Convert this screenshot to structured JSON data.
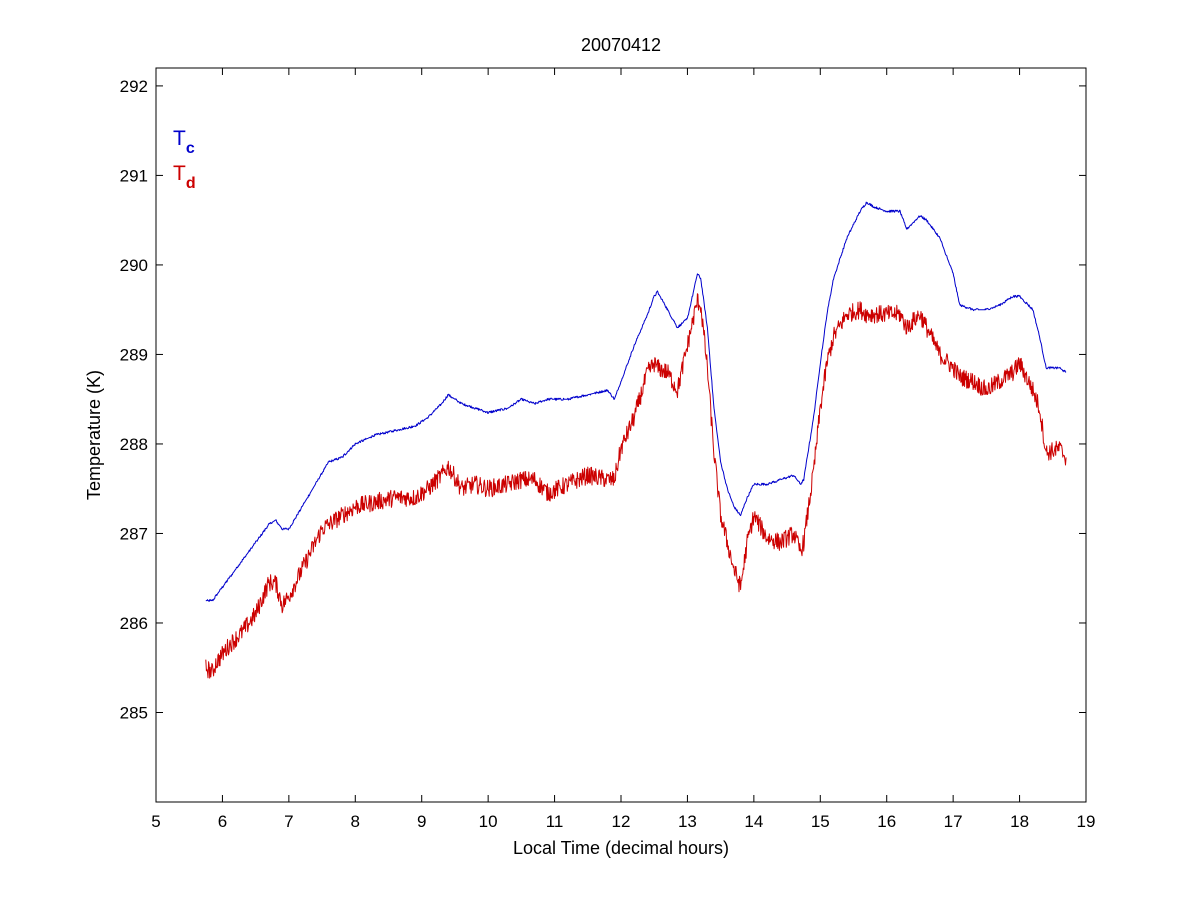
{
  "chart_data": {
    "type": "line",
    "title": "20070412",
    "xlabel": "Local Time (decimal hours)",
    "ylabel": "Temperature (K)",
    "xlim": [
      5,
      19
    ],
    "ylim": [
      284,
      292.2
    ],
    "xticks": [
      5,
      6,
      7,
      8,
      9,
      10,
      11,
      12,
      13,
      14,
      15,
      16,
      17,
      18,
      19
    ],
    "yticks": [
      285,
      286,
      287,
      288,
      289,
      290,
      291,
      292
    ],
    "grid": false,
    "legend_position": "top-left",
    "legend": [
      {
        "symbol": "T",
        "subscript": "c",
        "color": "#0000cc"
      },
      {
        "symbol": "T",
        "subscript": "d",
        "color": "#cc0000"
      }
    ],
    "series": [
      {
        "color": "#0000cc",
        "noise": 0.02,
        "x": [
          5.75,
          5.85,
          5.9,
          6.1,
          6.3,
          6.5,
          6.7,
          6.8,
          6.9,
          7.0,
          7.2,
          7.4,
          7.6,
          7.8,
          8.0,
          8.3,
          8.6,
          8.9,
          9.1,
          9.3,
          9.4,
          9.6,
          9.8,
          10.0,
          10.3,
          10.5,
          10.7,
          10.9,
          11.2,
          11.5,
          11.8,
          11.9,
          12.0,
          12.2,
          12.4,
          12.5,
          12.55,
          12.7,
          12.85,
          13.0,
          13.15,
          13.2,
          13.3,
          13.4,
          13.5,
          13.6,
          13.7,
          13.8,
          13.9,
          14.0,
          14.2,
          14.4,
          14.6,
          14.7,
          14.75,
          14.9,
          15.0,
          15.1,
          15.2,
          15.4,
          15.6,
          15.7,
          15.8,
          16.0,
          16.2,
          16.3,
          16.5,
          16.6,
          16.8,
          17.0,
          17.1,
          17.3,
          17.5,
          17.7,
          17.9,
          18.0,
          18.2,
          18.3,
          18.4,
          18.6,
          18.7
        ],
        "y": [
          286.25,
          286.25,
          286.3,
          286.5,
          286.7,
          286.9,
          287.1,
          287.15,
          287.05,
          287.05,
          287.3,
          287.55,
          287.8,
          287.85,
          288.0,
          288.1,
          288.15,
          288.2,
          288.3,
          288.45,
          288.55,
          288.45,
          288.4,
          288.35,
          288.4,
          288.5,
          288.45,
          288.5,
          288.5,
          288.55,
          288.6,
          288.5,
          288.7,
          289.1,
          289.45,
          289.65,
          289.7,
          289.5,
          289.3,
          289.4,
          289.9,
          289.85,
          289.3,
          288.4,
          287.8,
          287.5,
          287.3,
          287.2,
          287.4,
          287.55,
          287.55,
          287.6,
          287.65,
          287.55,
          287.6,
          288.3,
          288.9,
          289.45,
          289.85,
          290.3,
          290.6,
          290.7,
          290.65,
          290.6,
          290.6,
          290.4,
          290.55,
          290.5,
          290.3,
          289.9,
          289.55,
          289.5,
          289.5,
          289.55,
          289.65,
          289.65,
          289.5,
          289.2,
          288.85,
          288.85,
          288.8
        ]
      },
      {
        "color": "#cc0000",
        "noise": 0.1,
        "x": [
          5.75,
          5.85,
          5.9,
          6.1,
          6.3,
          6.5,
          6.7,
          6.8,
          6.9,
          7.0,
          7.2,
          7.4,
          7.5,
          7.7,
          8.0,
          8.3,
          8.6,
          8.9,
          9.1,
          9.3,
          9.4,
          9.6,
          9.8,
          10.0,
          10.3,
          10.5,
          10.7,
          10.9,
          11.2,
          11.5,
          11.8,
          11.9,
          12.0,
          12.2,
          12.4,
          12.5,
          12.55,
          12.7,
          12.85,
          13.0,
          13.15,
          13.2,
          13.3,
          13.4,
          13.5,
          13.6,
          13.7,
          13.8,
          13.9,
          14.0,
          14.2,
          14.4,
          14.6,
          14.7,
          14.75,
          14.9,
          15.0,
          15.1,
          15.2,
          15.4,
          15.6,
          15.7,
          15.8,
          16.0,
          16.2,
          16.3,
          16.5,
          16.6,
          16.8,
          17.0,
          17.1,
          17.3,
          17.5,
          17.7,
          17.9,
          18.0,
          18.2,
          18.3,
          18.4,
          18.6,
          18.7
        ],
        "y": [
          285.5,
          285.45,
          285.55,
          285.75,
          285.9,
          286.1,
          286.45,
          286.45,
          286.2,
          286.3,
          286.6,
          286.9,
          287.05,
          287.15,
          287.3,
          287.35,
          287.4,
          287.4,
          287.5,
          287.65,
          287.75,
          287.5,
          287.55,
          287.5,
          287.55,
          287.6,
          287.6,
          287.45,
          287.55,
          287.65,
          287.6,
          287.6,
          287.95,
          288.3,
          288.8,
          288.9,
          288.85,
          288.8,
          288.6,
          289.1,
          289.6,
          289.55,
          288.85,
          287.9,
          287.2,
          286.9,
          286.6,
          286.4,
          286.9,
          287.2,
          286.95,
          286.9,
          287.0,
          286.8,
          286.9,
          287.7,
          288.4,
          288.9,
          289.2,
          289.45,
          289.5,
          289.45,
          289.45,
          289.45,
          289.45,
          289.3,
          289.45,
          289.3,
          289.0,
          288.85,
          288.75,
          288.7,
          288.6,
          288.7,
          288.8,
          288.9,
          288.6,
          288.4,
          287.9,
          287.95,
          287.85
        ]
      }
    ]
  }
}
